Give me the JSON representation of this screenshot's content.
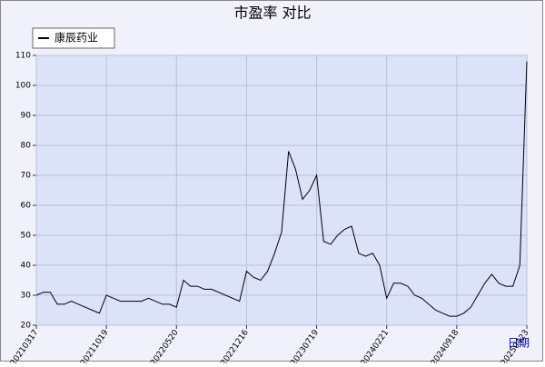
{
  "chart_data": {
    "type": "line",
    "title": "市盈率  对比",
    "x_label": "日期",
    "categories": [
      "20210317",
      null,
      null,
      null,
      null,
      null,
      null,
      null,
      null,
      null,
      "20211019",
      null,
      null,
      null,
      null,
      null,
      null,
      null,
      null,
      null,
      "20220520",
      null,
      null,
      null,
      null,
      null,
      null,
      null,
      null,
      null,
      "20221216",
      null,
      null,
      null,
      null,
      null,
      null,
      null,
      null,
      null,
      "20230719",
      null,
      null,
      null,
      null,
      null,
      null,
      null,
      null,
      null,
      "20240221",
      null,
      null,
      null,
      null,
      null,
      null,
      null,
      null,
      null,
      "20240918",
      null,
      null,
      null,
      null,
      null,
      null,
      null,
      null,
      null,
      "20250423"
    ],
    "series": [
      {
        "name": "康辰药业",
        "color": "#000000",
        "values": [
          30,
          31,
          31,
          27,
          27,
          28,
          27,
          26,
          25,
          24,
          30,
          29,
          28,
          28,
          28,
          28,
          29,
          28,
          27,
          27,
          26,
          35,
          33,
          33,
          32,
          32,
          31,
          30,
          29,
          28,
          38,
          36,
          35,
          38,
          44,
          51,
          78,
          72,
          62,
          65,
          70,
          48,
          47,
          50,
          52,
          53,
          44,
          43,
          44,
          40,
          29,
          34,
          34,
          33,
          30,
          29,
          27,
          25,
          24,
          23,
          23,
          24,
          26,
          30,
          34,
          37,
          34,
          33,
          33,
          40,
          108
        ]
      }
    ],
    "ylim": [
      20,
      110
    ],
    "yticks": [
      20,
      30,
      40,
      50,
      60,
      70,
      80,
      90,
      100,
      110
    ],
    "grid": true,
    "legend": "top-left"
  }
}
